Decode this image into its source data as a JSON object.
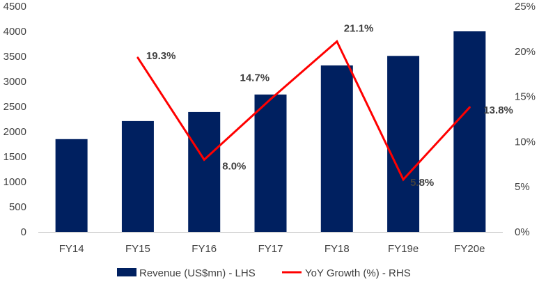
{
  "chart_data": {
    "type": "bar",
    "categories": [
      "FY14",
      "FY15",
      "FY16",
      "FY17",
      "FY18",
      "FY19e",
      "FY20e"
    ],
    "series": [
      {
        "name": "Revenue (US$mn) - LHS",
        "type": "bar",
        "axis": "left",
        "color": "#002060",
        "values": [
          1850,
          2210,
          2390,
          2740,
          3320,
          3510,
          4000
        ]
      },
      {
        "name": "YoY Growth (%) - RHS",
        "type": "line",
        "axis": "right",
        "color": "#ff0000",
        "values": [
          null,
          19.3,
          8.0,
          14.7,
          21.1,
          5.8,
          13.8
        ],
        "labels": [
          "",
          "19.3%",
          "8.0%",
          "14.7%",
          "21.1%",
          "5.8%",
          "13.8%"
        ]
      }
    ],
    "y_left": {
      "ylim": [
        0,
        4500
      ],
      "ticks": [
        "0",
        "500",
        "1000",
        "1500",
        "2000",
        "2500",
        "3000",
        "3500",
        "4000",
        "4500"
      ]
    },
    "y_right": {
      "ylim": [
        0,
        25
      ],
      "ticks": [
        "0%",
        "5%",
        "10%",
        "15%",
        "20%",
        "25%"
      ]
    },
    "grid": false,
    "legend": "bottom"
  }
}
